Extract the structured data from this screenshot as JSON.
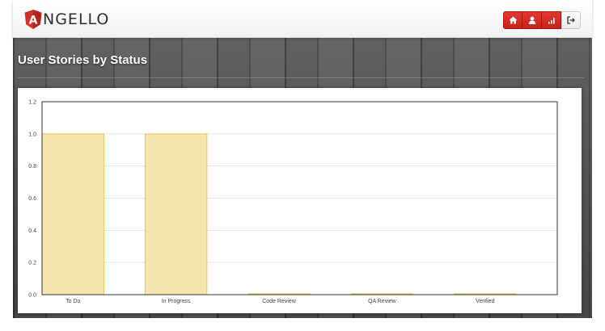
{
  "app": {
    "brand_initial": "A",
    "brand_rest": "NGELLO",
    "accent": "#d32f27"
  },
  "nav": {
    "buttons": [
      {
        "icon": "home-icon"
      },
      {
        "icon": "user-icon"
      },
      {
        "icon": "bar-chart-icon"
      },
      {
        "icon": "logout-icon"
      }
    ]
  },
  "page": {
    "title": "User Stories by Status"
  },
  "chart_data": {
    "type": "bar",
    "title": "",
    "xlabel": "",
    "ylabel": "",
    "categories": [
      "To Do",
      "In Progress",
      "Code Review",
      "QA Review",
      "Verified"
    ],
    "values": [
      1,
      1,
      0,
      0,
      0
    ],
    "ylim": [
      0,
      1.2
    ],
    "yticks": [
      "0.0",
      "0.2",
      "0.4",
      "0.6",
      "0.8",
      "1.0",
      "1.2"
    ],
    "grid": true,
    "legend": "none",
    "bar_fill": "#f6e4ae",
    "bar_stroke": "#eac461"
  }
}
